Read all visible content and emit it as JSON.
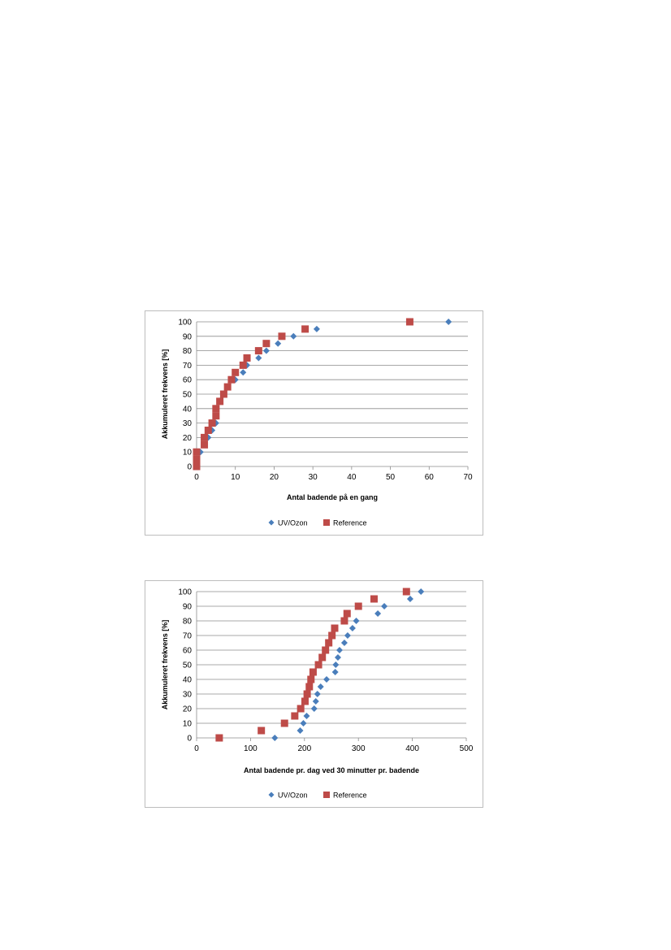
{
  "chart_data": [
    {
      "type": "scatter",
      "xlabel": "Antal badende på en gang",
      "ylabel": "Akkumuleret frekvens [%]",
      "xlim": [
        0,
        70
      ],
      "ylim": [
        0,
        100
      ],
      "xticks": [
        0,
        10,
        20,
        30,
        40,
        50,
        60,
        70
      ],
      "yticks": [
        0,
        10,
        20,
        30,
        40,
        50,
        60,
        70,
        80,
        90,
        100
      ],
      "grid": "horizontal",
      "legend": "bottom",
      "series": [
        {
          "name": "UV/Ozon",
          "marker": "diamond",
          "color": "#4a7ebb",
          "points": [
            [
              0,
              0
            ],
            [
              0,
              5
            ],
            [
              1,
              10
            ],
            [
              2,
              15
            ],
            [
              3,
              20
            ],
            [
              4,
              25
            ],
            [
              5,
              30
            ],
            [
              5,
              35
            ],
            [
              5,
              40
            ],
            [
              6,
              45
            ],
            [
              7,
              50
            ],
            [
              8,
              55
            ],
            [
              9,
              60
            ],
            [
              10,
              60
            ],
            [
              12,
              65
            ],
            [
              13,
              70
            ],
            [
              16,
              75
            ],
            [
              18,
              80
            ],
            [
              21,
              85
            ],
            [
              25,
              90
            ],
            [
              31,
              95
            ],
            [
              65,
              100
            ]
          ]
        },
        {
          "name": "Reference",
          "marker": "square",
          "color": "#be4b48",
          "points": [
            [
              0,
              0
            ],
            [
              0,
              2
            ],
            [
              0,
              5
            ],
            [
              0,
              10
            ],
            [
              2,
              15
            ],
            [
              2,
              20
            ],
            [
              3,
              25
            ],
            [
              4,
              30
            ],
            [
              5,
              35
            ],
            [
              5,
              40
            ],
            [
              6,
              45
            ],
            [
              7,
              50
            ],
            [
              8,
              55
            ],
            [
              9,
              60
            ],
            [
              10,
              65
            ],
            [
              12,
              70
            ],
            [
              13,
              75
            ],
            [
              16,
              80
            ],
            [
              18,
              85
            ],
            [
              22,
              90
            ],
            [
              28,
              95
            ],
            [
              55,
              100
            ]
          ]
        }
      ]
    },
    {
      "type": "scatter",
      "xlabel": "Antal badende pr. dag ved 30 minutter pr. badende",
      "ylabel": "Akkumuleret frekvens [%]",
      "xlim": [
        0,
        500
      ],
      "ylim": [
        0,
        100
      ],
      "xticks": [
        0,
        100,
        200,
        300,
        400,
        500
      ],
      "yticks": [
        0,
        10,
        20,
        30,
        40,
        50,
        60,
        70,
        80,
        90,
        100
      ],
      "grid": "horizontal",
      "legend": "bottom",
      "series": [
        {
          "name": "UV/Ozon",
          "marker": "diamond",
          "color": "#4a7ebb",
          "points": [
            [
              145,
              0
            ],
            [
              192,
              5
            ],
            [
              198,
              10
            ],
            [
              204,
              15
            ],
            [
              218,
              20
            ],
            [
              221,
              25
            ],
            [
              224,
              30
            ],
            [
              230,
              35
            ],
            [
              241,
              40
            ],
            [
              257,
              45
            ],
            [
              258,
              50
            ],
            [
              262,
              55
            ],
            [
              265,
              60
            ],
            [
              274,
              65
            ],
            [
              280,
              70
            ],
            [
              289,
              75
            ],
            [
              296,
              80
            ],
            [
              336,
              85
            ],
            [
              348,
              90
            ],
            [
              396,
              95
            ],
            [
              416,
              100
            ]
          ]
        },
        {
          "name": "Reference",
          "marker": "square",
          "color": "#be4b48",
          "points": [
            [
              42,
              0
            ],
            [
              120,
              5
            ],
            [
              163,
              10
            ],
            [
              182,
              15
            ],
            [
              193,
              20
            ],
            [
              201,
              25
            ],
            [
              205,
              30
            ],
            [
              209,
              35
            ],
            [
              212,
              40
            ],
            [
              216,
              45
            ],
            [
              226,
              50
            ],
            [
              233,
              55
            ],
            [
              239,
              60
            ],
            [
              245,
              65
            ],
            [
              251,
              70
            ],
            [
              256,
              75
            ],
            [
              274,
              80
            ],
            [
              279,
              85
            ],
            [
              300,
              90
            ],
            [
              329,
              95
            ],
            [
              389,
              100
            ]
          ]
        }
      ]
    }
  ]
}
